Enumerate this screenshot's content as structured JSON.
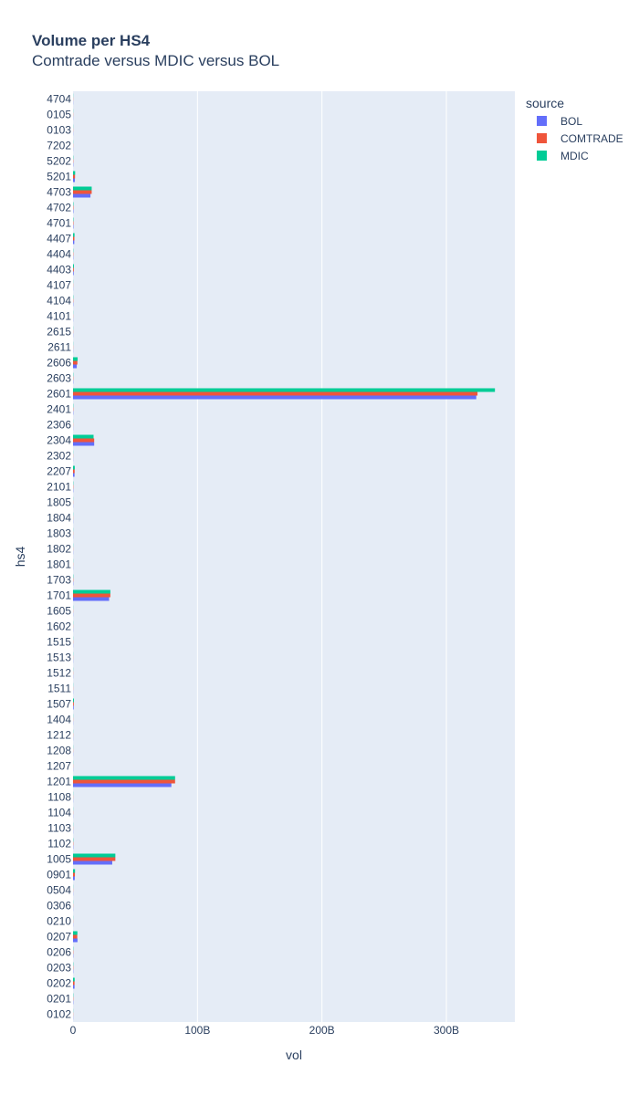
{
  "chart_data": {
    "type": "bar",
    "orientation": "horizontal",
    "title": "Volume per HS4",
    "subtitle": "Comtrade versus MDIC versus BOL",
    "xlabel": "vol",
    "ylabel": "hs4",
    "xlim": [
      0,
      355000000000
    ],
    "xticks": [
      {
        "value": 0,
        "label": "0"
      },
      {
        "value": 100000000000,
        "label": "100B"
      },
      {
        "value": 200000000000,
        "label": "200B"
      },
      {
        "value": 300000000000,
        "label": "300B"
      }
    ],
    "grid": true,
    "legend_title": "source",
    "legend_position": "top-right",
    "categories": [
      "4704",
      "0105",
      "0103",
      "7202",
      "5202",
      "5201",
      "4703",
      "4702",
      "4701",
      "4407",
      "4404",
      "4403",
      "4107",
      "4104",
      "4101",
      "2615",
      "2611",
      "2606",
      "2603",
      "2601",
      "2401",
      "2306",
      "2304",
      "2302",
      "2207",
      "2101",
      "1805",
      "1804",
      "1803",
      "1802",
      "1801",
      "1703",
      "1701",
      "1605",
      "1602",
      "1515",
      "1513",
      "1512",
      "1511",
      "1507",
      "1404",
      "1212",
      "1208",
      "1207",
      "1201",
      "1108",
      "1104",
      "1103",
      "1102",
      "1005",
      "0901",
      "0504",
      "0306",
      "0210",
      "0207",
      "0206",
      "0203",
      "0202",
      "0201",
      "0102"
    ],
    "series": [
      {
        "name": "BOL",
        "color": "#636efa",
        "values": [
          100000000,
          100000000,
          100000000,
          100000000,
          200000000,
          1500000000,
          14000000000,
          300000000,
          300000000,
          1000000000,
          200000000,
          500000000,
          100000000,
          200000000,
          100000000,
          100000000,
          100000000,
          3000000000,
          200000000,
          324000000000,
          200000000,
          100000000,
          17000000000,
          100000000,
          1200000000,
          200000000,
          100000000,
          100000000,
          100000000,
          100000000,
          100000000,
          200000000,
          29000000000,
          100000000,
          100000000,
          100000000,
          100000000,
          100000000,
          100000000,
          500000000,
          100000000,
          100000000,
          100000000,
          100000000,
          79000000000,
          100000000,
          100000000,
          100000000,
          200000000,
          31500000000,
          1400000000,
          100000000,
          100000000,
          100000000,
          3600000000,
          200000000,
          200000000,
          1200000000,
          200000000,
          100000000
        ]
      },
      {
        "name": "COMTRADE",
        "color": "#ef553b",
        "values": [
          100000000,
          100000000,
          100000000,
          100000000,
          200000000,
          1600000000,
          15000000000,
          300000000,
          300000000,
          1100000000,
          200000000,
          600000000,
          100000000,
          200000000,
          100000000,
          100000000,
          100000000,
          3500000000,
          200000000,
          325000000000,
          200000000,
          100000000,
          17000000000,
          100000000,
          1300000000,
          200000000,
          100000000,
          100000000,
          100000000,
          100000000,
          100000000,
          200000000,
          30000000000,
          100000000,
          100000000,
          100000000,
          100000000,
          100000000,
          100000000,
          600000000,
          100000000,
          100000000,
          100000000,
          100000000,
          82000000000,
          100000000,
          100000000,
          100000000,
          200000000,
          34000000000,
          1500000000,
          100000000,
          100000000,
          100000000,
          3400000000,
          200000000,
          200000000,
          1200000000,
          200000000,
          100000000
        ]
      },
      {
        "name": "MDIC",
        "color": "#00cc96",
        "values": [
          100000000,
          100000000,
          100000000,
          100000000,
          200000000,
          1700000000,
          15000000000,
          300000000,
          300000000,
          1200000000,
          200000000,
          700000000,
          100000000,
          200000000,
          100000000,
          100000000,
          100000000,
          3700000000,
          200000000,
          339000000000,
          200000000,
          100000000,
          16500000000,
          100000000,
          1400000000,
          200000000,
          100000000,
          100000000,
          100000000,
          100000000,
          100000000,
          200000000,
          30000000000,
          100000000,
          100000000,
          100000000,
          100000000,
          100000000,
          100000000,
          700000000,
          100000000,
          100000000,
          100000000,
          100000000,
          82000000000,
          100000000,
          100000000,
          100000000,
          200000000,
          34000000000,
          1600000000,
          100000000,
          100000000,
          100000000,
          3500000000,
          200000000,
          200000000,
          1300000000,
          200000000,
          100000000
        ]
      }
    ]
  }
}
